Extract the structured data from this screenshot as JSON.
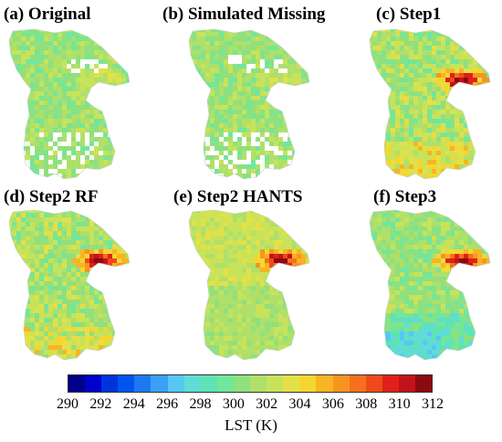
{
  "panels": [
    {
      "label": "(a) Original",
      "variant": "original"
    },
    {
      "label": "(b) Simulated Missing",
      "variant": "missing"
    },
    {
      "label": "(c) Step1",
      "variant": "step1"
    },
    {
      "label": "(d) Step2 RF",
      "variant": "step2rf"
    },
    {
      "label": "(e) Step2 HANTS",
      "variant": "hants"
    },
    {
      "label": "(f) Step3",
      "variant": "step3"
    }
  ],
  "colorbar": {
    "title": "LST (K)",
    "min": 290,
    "max": 312,
    "ticks": [
      "290",
      "292",
      "294",
      "296",
      "298",
      "300",
      "302",
      "304",
      "306",
      "308",
      "310",
      "312"
    ],
    "colors": [
      "#00008b",
      "#0000cd",
      "#0033dd",
      "#0055ee",
      "#1e78f0",
      "#3aa0f5",
      "#55c7f5",
      "#5fdcd6",
      "#5ee3b4",
      "#72e69a",
      "#8fe07e",
      "#aee06a",
      "#c8e35a",
      "#e3e048",
      "#f5d630",
      "#f8b424",
      "#f79520",
      "#f4701e",
      "#ee4a1c",
      "#e0201a",
      "#c2121a",
      "#8b0a10"
    ]
  }
}
